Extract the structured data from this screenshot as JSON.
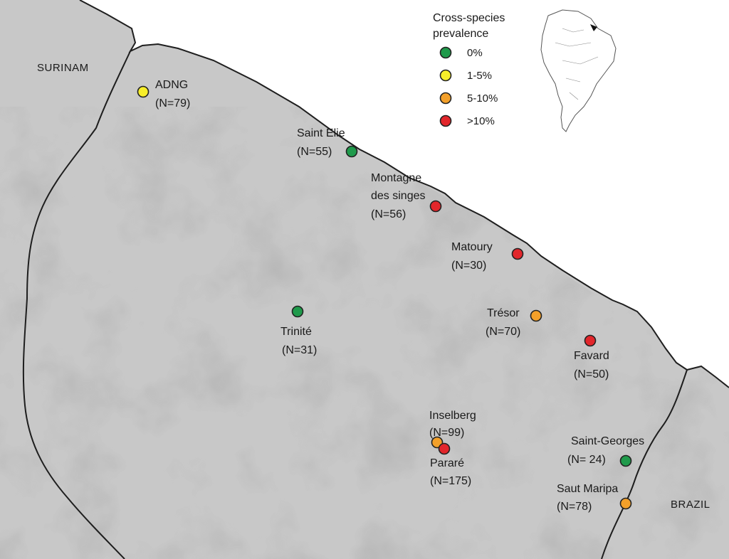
{
  "map": {
    "countries": [
      "SURINAM",
      "BRAZIL"
    ],
    "legend": {
      "title_lines": [
        "Cross-species",
        "prevalence"
      ],
      "items": [
        {
          "label": "0%",
          "color": "#1f9a4b"
        },
        {
          "label": "1-5%",
          "color": "#f7ee2a"
        },
        {
          "label": "5-10%",
          "color": "#f3a02a"
        },
        {
          "label": ">10%",
          "color": "#e2262b"
        }
      ]
    },
    "sites": [
      {
        "name": "ADNG",
        "n": "(N=79)",
        "category": "1-5%"
      },
      {
        "name": "Saint Elie",
        "n": "(N=55)",
        "category": "0%"
      },
      {
        "name": "Montagne des singes",
        "name_lines": [
          "Montagne",
          "des singes"
        ],
        "n": "(N=56)",
        "category": ">10%"
      },
      {
        "name": "Matoury",
        "n": "(N=30)",
        "category": ">10%"
      },
      {
        "name": "Trinité",
        "n": "(N=31)",
        "category": "0%"
      },
      {
        "name": "Trésor",
        "n": "(N=70)",
        "category": "5-10%"
      },
      {
        "name": "Favard",
        "n": "(N=50)",
        "category": ">10%"
      },
      {
        "name": "Inselberg",
        "n": "(N=99)",
        "category": "5-10%"
      },
      {
        "name": "Pararé",
        "n": "(N=175)",
        "category": ">10%"
      },
      {
        "name": "Saint-Georges",
        "n": "(N= 24)",
        "category": "0%"
      },
      {
        "name": "Saut Maripa",
        "n": "(N=78)",
        "category": "5-10%"
      }
    ]
  }
}
